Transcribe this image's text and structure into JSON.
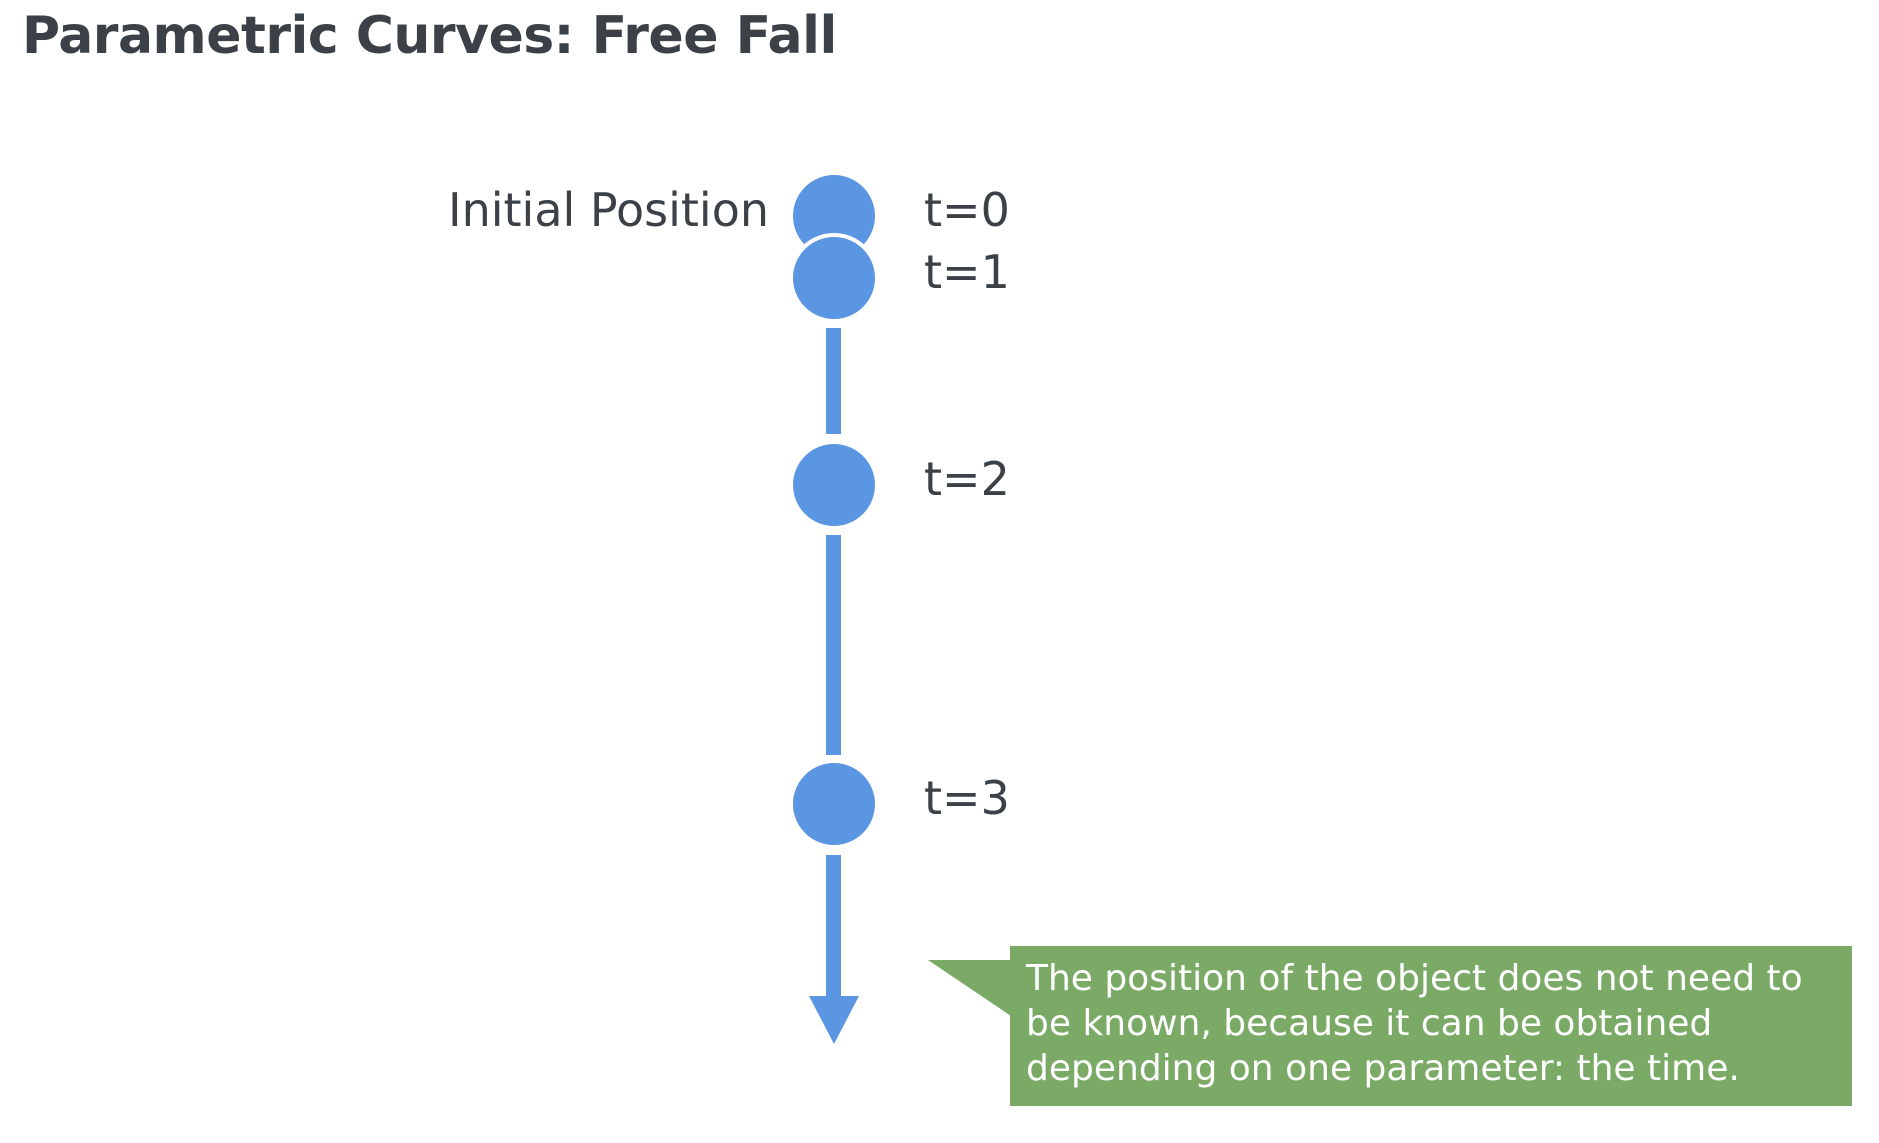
{
  "title": "Parametric Curves: Free Fall",
  "initial_position_label": "Initial Position",
  "time_steps": [
    {
      "label": "t=0",
      "t": 0
    },
    {
      "label": "t=1",
      "t": 1
    },
    {
      "label": "t=2",
      "t": 2
    },
    {
      "label": "t=3",
      "t": 3
    }
  ],
  "callout": {
    "text": "The position of the object does not need to be known, because it can be obtained depending on one parameter: the time."
  },
  "colors": {
    "ball": "#5b96e3",
    "track": "#5b96e3",
    "callout_bg": "#7aaa66",
    "text": "#3b4146"
  }
}
